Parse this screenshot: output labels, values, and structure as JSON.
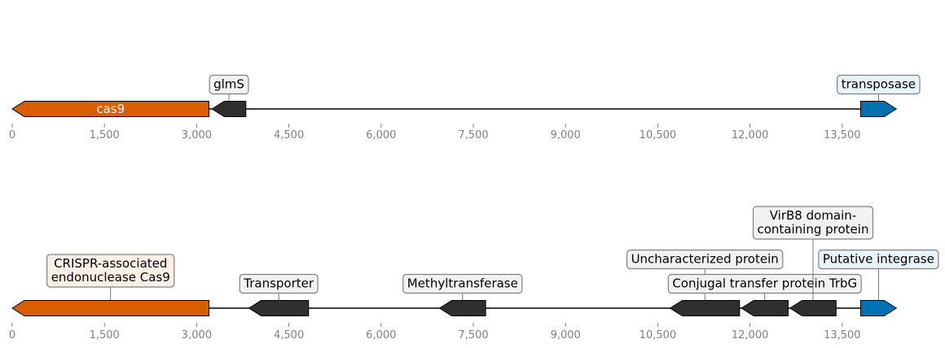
{
  "chart_data": [
    {
      "type": "gene-map",
      "xlim": [
        0,
        14500
      ],
      "ticks": [
        "0",
        "1,500",
        "3,000",
        "4,500",
        "6,000",
        "7,500",
        "9,000",
        "10,500",
        "12,000",
        "13,500"
      ],
      "genes": [
        {
          "start": 0,
          "end": 3200,
          "strand": -1,
          "color": "#d95f02",
          "label": "cas9",
          "label_inside": true
        },
        {
          "start": 3250,
          "end": 3800,
          "strand": -1,
          "color": "#2f2f2f",
          "label": "glmS",
          "box_fill": "#f2f2f2"
        },
        {
          "start": 13800,
          "end": 14380,
          "strand": 1,
          "color": "#0072b2",
          "label": "transposase",
          "box_fill": "#eaf4fb"
        }
      ]
    },
    {
      "type": "gene-map",
      "xlim": [
        0,
        14500
      ],
      "ticks": [
        "0",
        "1,500",
        "3,000",
        "4,500",
        "6,000",
        "7,500",
        "9,000",
        "10,500",
        "12,000",
        "13,500"
      ],
      "genes": [
        {
          "start": 0,
          "end": 3200,
          "strand": -1,
          "color": "#d95f02",
          "label": "CRISPR-associated\nendonuclease Cas9",
          "box_fill": "#fdf0e6"
        },
        {
          "start": 3850,
          "end": 4820,
          "strand": -1,
          "color": "#2f2f2f",
          "label": "Transporter",
          "box_fill": "#f2f2f2"
        },
        {
          "start": 6950,
          "end": 7700,
          "strand": -1,
          "color": "#2f2f2f",
          "label": "Methyltransferase",
          "box_fill": "#f2f2f2"
        },
        {
          "start": 10700,
          "end": 11830,
          "strand": -1,
          "color": "#2f2f2f",
          "label": "Uncharacterized protein",
          "box_fill": "#f2f2f2"
        },
        {
          "start": 11860,
          "end": 12620,
          "strand": -1,
          "color": "#2f2f2f",
          "label": "Conjugal transfer protein TrbG",
          "box_fill": "#f2f2f2"
        },
        {
          "start": 12650,
          "end": 13400,
          "strand": -1,
          "color": "#2f2f2f",
          "label": "VirB8 domain-\ncontaining protein",
          "box_fill": "#f2f2f2"
        },
        {
          "start": 13800,
          "end": 14380,
          "strand": 1,
          "color": "#0072b2",
          "label": "Putative integrase",
          "box_fill": "#eaf4fb"
        }
      ]
    }
  ]
}
